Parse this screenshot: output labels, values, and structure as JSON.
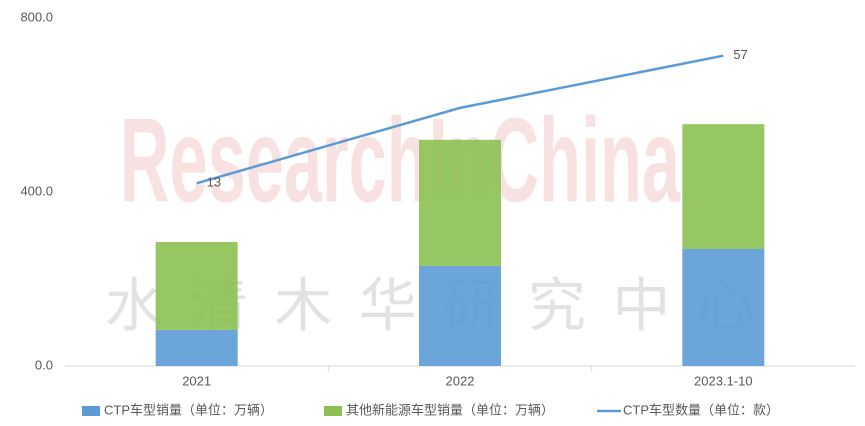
{
  "chart_data": {
    "type": "bar",
    "categories": [
      "2021",
      "2022",
      "2023.1-10"
    ],
    "series": [
      {
        "name": "CTP车型销量（单位：万辆）",
        "color": "#5b9bd5",
        "values": [
          83,
          230,
          269
        ]
      },
      {
        "name": "其他新能源车型销量（单位：万辆）",
        "color": "#8cc152",
        "values": [
          202,
          290,
          287
        ]
      },
      {
        "name": "CTP车型数量（单位：款）",
        "color": "#5b9bd5",
        "type": "line",
        "axis": "y2",
        "values": [
          13,
          39,
          57
        ],
        "value_labels": [
          "13",
          null,
          "57"
        ]
      }
    ],
    "ylim": [
      0,
      800
    ],
    "yticks": [
      {
        "value": 0,
        "label": "0.0"
      },
      {
        "value": 400,
        "label": "400.0"
      },
      {
        "value": 800,
        "label": "800.0"
      }
    ],
    "y2lim": [
      -50,
      70
    ],
    "stacked": true,
    "legend": "bottom",
    "watermark": [
      "ResearchInChina",
      "水清木华研究中心"
    ]
  }
}
